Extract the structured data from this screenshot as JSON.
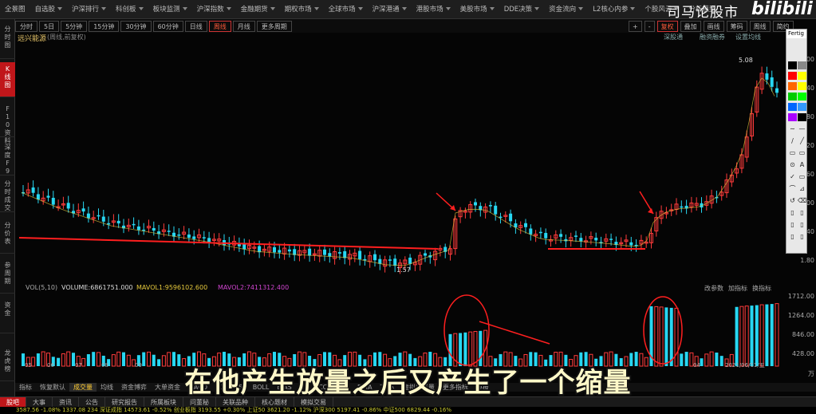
{
  "menu": [
    "全景图",
    "自选股",
    "沪深排行",
    "科创板",
    "板块监测",
    "沪深指数",
    "金融期货",
    "期权市场",
    "全球市场",
    "沪深港通",
    "港股市场",
    "美股市场",
    "DDE决策",
    "资金流向",
    "L2核心内参",
    "个股风云",
    "分析模型"
  ],
  "brand": "司马论股市",
  "bili": "bilibili",
  "leftnav": [
    "分时图",
    "K线图",
    "F10资料",
    "深度F9",
    "分时成交",
    "分价表",
    "参周期",
    "资金",
    "龙虎榜"
  ],
  "periods": [
    "分时",
    "5日",
    "5分钟",
    "15分钟",
    "30分钟",
    "60分钟",
    "日线",
    "周线",
    "月线",
    "更多周期"
  ],
  "active_period": "周线",
  "right_tools": [
    "+",
    "-",
    "复权",
    "叠加",
    "画线",
    "筹码",
    "周线",
    "简约"
  ],
  "stock": {
    "name": "远兴能源",
    "sub": "(周线,前复权)",
    "links": [
      "深股通",
      "融资融券",
      "设置均线"
    ]
  },
  "price_labels": {
    "high": "5.08",
    "low": "1.57"
  },
  "price_axis": [
    "6.00",
    "5.40",
    "4.80",
    "4.20",
    "3.60",
    "3.00",
    "2.40",
    "1.80"
  ],
  "vol_header": {
    "vol": "VOL(5,10)",
    "volume": "VOLUME:6861751.000",
    "mavol1": "MAVOL1:9596102.600",
    "mavol2": "MAVOL2:7411312.400",
    "actions": [
      "改参数",
      "加指标",
      "换指标"
    ]
  },
  "vol_axis": [
    "1712.00",
    "1264.00",
    "846.00",
    "428.00",
    "万"
  ],
  "dates": [
    "05",
    "06",
    "07",
    "08",
    "09",
    "04",
    "2021/06/11/五"
  ],
  "indicator_tabs": [
    "指标",
    "恢复默认",
    "成交量",
    "均线",
    "资金博弈",
    "大单资金",
    "MACD",
    "KDJ",
    "RSI",
    "BOLL",
    "BIAS",
    "BBI",
    "CCI",
    "DMI",
    "DMA",
    "TRIX",
    "虚拟成交量",
    "更多指标",
    "模板"
  ],
  "bottom_tabs": [
    "股吧",
    "大事",
    "资讯",
    "公告",
    "研究报告",
    "所属板块",
    "问董秘",
    "关联品种",
    "核心题材",
    "模拟交易"
  ],
  "ticker": "3587.56  -1.08%  1337.08  234  深证成指 14573.61  -0.52%  创业板指 3193.55  +0.30%  上证50 3621.20  -1.12%  沪深300 5197.41  -0.86%  中证500 6829.44  -0.16%",
  "subtitle": "在他产生放量之后又产生了一个缩量",
  "drawpanel_title": "Fertig",
  "colors": {
    "up": "#ff3b3b",
    "down": "#27d7f2",
    "ma1": "#e8e8e8",
    "ma2": "#e6c93c",
    "ma3": "#d045d0",
    "annot": "#ff1f1f"
  },
  "chart_data": {
    "type": "candlestick",
    "price_high": 5.08,
    "price_low": 1.57,
    "annotations": [
      "two red trendlines",
      "red arrows at breakouts",
      "red circles on volume spikes"
    ]
  }
}
